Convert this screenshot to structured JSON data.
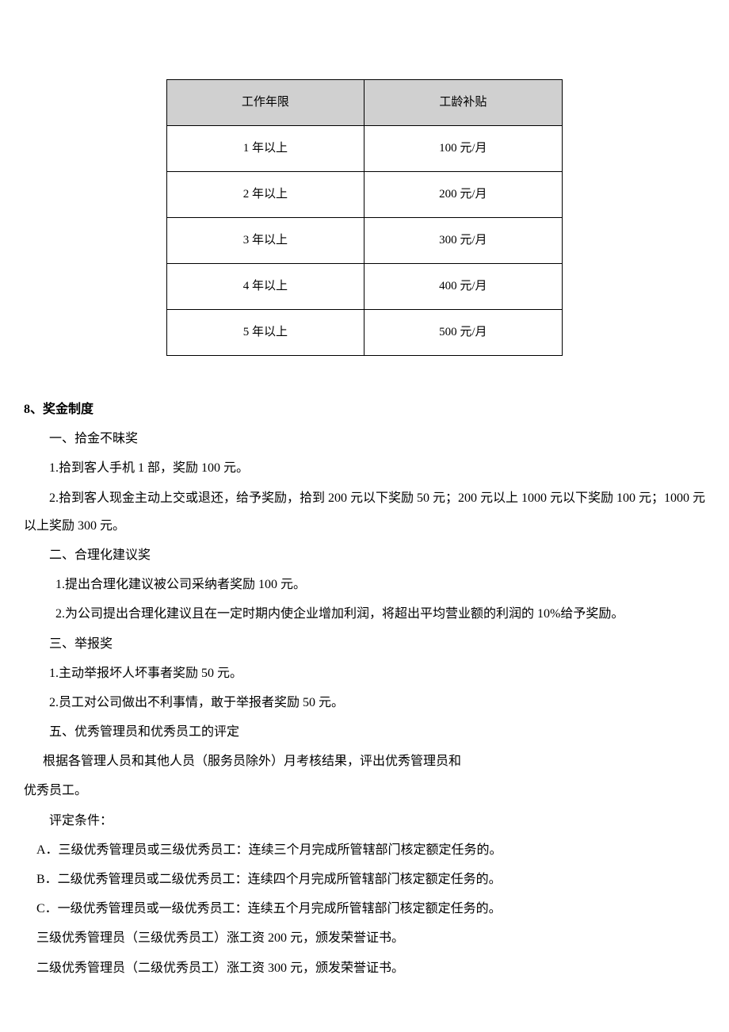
{
  "table": {
    "headers": [
      "工作年限",
      "工龄补贴"
    ],
    "rows": [
      [
        "1 年以上",
        "100 元/月"
      ],
      [
        "2 年以上",
        "200 元/月"
      ],
      [
        "3 年以上",
        "300 元/月"
      ],
      [
        "4 年以上",
        "400 元/月"
      ],
      [
        "5 年以上",
        "500 元/月"
      ]
    ]
  },
  "section8": {
    "title": "8、奖金制度",
    "sub1_title": "一、拾金不昧奖",
    "sub1_item1": "1.拾到客人手机 1 部，奖励 100 元。",
    "sub1_item2": "2.拾到客人现金主动上交或退还，给予奖励，拾到 200 元以下奖励 50 元；200 元以上 1000 元以下奖励 100 元；1000 元以上奖励 300 元。",
    "sub2_title": "二、合理化建议奖",
    "sub2_item1": "1.提出合理化建议被公司采纳者奖励 100 元。",
    "sub2_item2": "2.为公司提出合理化建议且在一定时期内使企业增加利润，将超出平均营业额的利润的 10%给予奖励。",
    "sub3_title": "三、举报奖",
    "sub3_item1": "1.主动举报坏人坏事者奖励 50 元。",
    "sub3_item2": "2.员工对公司做出不利事情，敢于举报者奖励 50 元。",
    "sub5_title": "五、优秀管理员和优秀员工的评定",
    "sub5_desc1": "根据各管理人员和其他人员（服务员除外）月考核结果，评出优秀管理员和",
    "sub5_desc2": "优秀员工。",
    "criteria_title": "评定条件：",
    "criteria_a": "A．三级优秀管理员或三级优秀员工：连续三个月完成所管辖部门核定额定任务的。",
    "criteria_b": "B．二级优秀管理员或二级优秀员工：连续四个月完成所管辖部门核定额定任务的。",
    "criteria_c": "C．一级优秀管理员或一级优秀员工：连续五个月完成所管辖部门核定额定任务的。",
    "reward_3": "三级优秀管理员（三级优秀员工）涨工资 200 元，颁发荣誉证书。",
    "reward_2": "二级优秀管理员（二级优秀员工）涨工资 300 元，颁发荣誉证书。"
  }
}
